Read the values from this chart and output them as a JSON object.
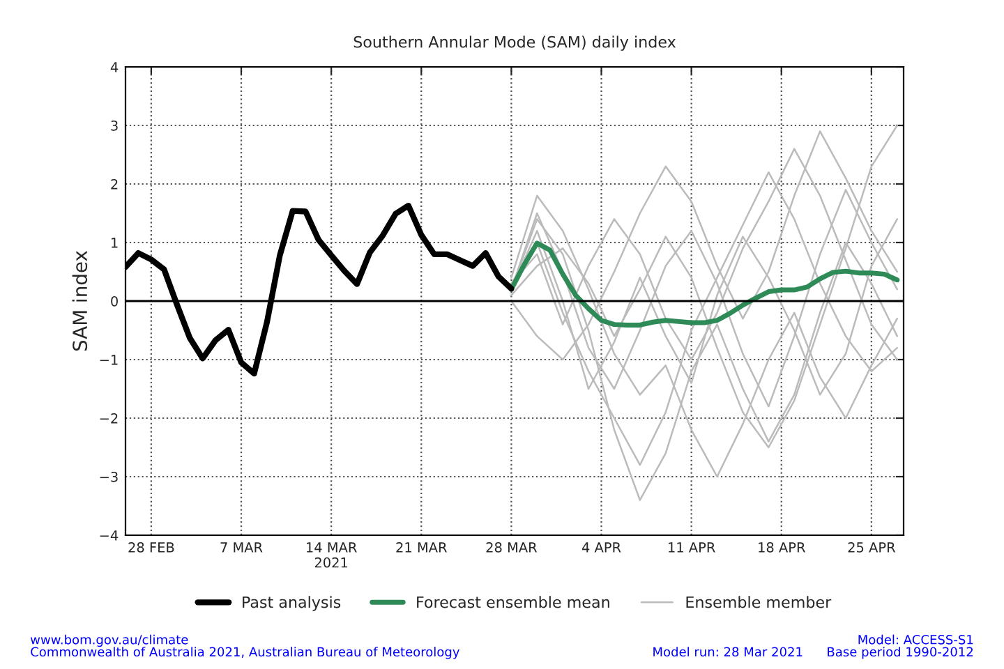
{
  "chart_data": {
    "type": "line",
    "title": "Southern Annular Mode (SAM) daily index",
    "ylabel": "SAM index",
    "xlim": [
      "2021-02-26",
      "2021-04-27T12:00"
    ],
    "xticks": [
      {
        "value": "2021-02-28",
        "label": "28 FEB"
      },
      {
        "value": "2021-03-07",
        "label": "7 MAR"
      },
      {
        "value": "2021-03-14",
        "label": "14 MAR\n2021"
      },
      {
        "value": "2021-03-21",
        "label": "21 MAR"
      },
      {
        "value": "2021-03-28",
        "label": "28 MAR"
      },
      {
        "value": "2021-04-04",
        "label": "4 APR"
      },
      {
        "value": "2021-04-11",
        "label": "11 APR"
      },
      {
        "value": "2021-04-18",
        "label": "18 APR"
      },
      {
        "value": "2021-04-25",
        "label": "25 APR"
      }
    ],
    "ylim": [
      -4,
      4
    ],
    "yticks": [
      {
        "value": -4,
        "label": "−4"
      },
      {
        "value": -3,
        "label": "−3"
      },
      {
        "value": -2,
        "label": "−2"
      },
      {
        "value": -1,
        "label": "−1"
      },
      0,
      1,
      2,
      3,
      4
    ],
    "grid": true,
    "legend": "bottom",
    "line_style": "solid",
    "marker": "none",
    "ref_lines": [
      {
        "axis": "y",
        "value": 0,
        "color": "#000000",
        "line_style": "solid"
      }
    ],
    "series": [
      {
        "name": "Past analysis",
        "color": "#000000",
        "x": [
          "2021-02-26",
          "2021-02-27",
          "2021-02-28",
          "2021-03-01",
          "2021-03-02",
          "2021-03-03",
          "2021-03-04",
          "2021-03-05",
          "2021-03-06",
          "2021-03-07",
          "2021-03-08",
          "2021-03-09",
          "2021-03-10",
          "2021-03-11",
          "2021-03-12",
          "2021-03-13",
          "2021-03-14",
          "2021-03-15",
          "2021-03-16",
          "2021-03-17",
          "2021-03-18",
          "2021-03-19",
          "2021-03-20",
          "2021-03-21",
          "2021-03-22",
          "2021-03-23",
          "2021-03-24",
          "2021-03-25",
          "2021-03-26",
          "2021-03-27",
          "2021-03-28"
        ],
        "values": [
          0.58,
          0.82,
          0.71,
          0.54,
          -0.06,
          -0.63,
          -0.98,
          -0.67,
          -0.49,
          -1.05,
          -1.24,
          -0.36,
          0.78,
          1.54,
          1.53,
          1.05,
          0.78,
          0.52,
          0.29,
          0.83,
          1.12,
          1.49,
          1.63,
          1.13,
          0.8,
          0.8,
          0.7,
          0.6,
          0.82,
          0.42,
          0.21
        ]
      },
      {
        "name": "Forecast ensemble mean",
        "color": "#2e8b57",
        "x": [
          "2021-03-28",
          "2021-03-29",
          "2021-03-30",
          "2021-03-31",
          "2021-04-01",
          "2021-04-02",
          "2021-04-03",
          "2021-04-04",
          "2021-04-05",
          "2021-04-06",
          "2021-04-07",
          "2021-04-08",
          "2021-04-09",
          "2021-04-10",
          "2021-04-11",
          "2021-04-12",
          "2021-04-13",
          "2021-04-14",
          "2021-04-15",
          "2021-04-16",
          "2021-04-17",
          "2021-04-18",
          "2021-04-19",
          "2021-04-20",
          "2021-04-21",
          "2021-04-22",
          "2021-04-23",
          "2021-04-24",
          "2021-04-25",
          "2021-04-26",
          "2021-04-27"
        ],
        "values": [
          0.2,
          0.62,
          0.99,
          0.87,
          0.46,
          0.1,
          -0.13,
          -0.33,
          -0.4,
          -0.41,
          -0.41,
          -0.36,
          -0.33,
          -0.35,
          -0.37,
          -0.37,
          -0.33,
          -0.21,
          -0.07,
          0.05,
          0.16,
          0.19,
          0.19,
          0.24,
          0.38,
          0.49,
          0.51,
          0.48,
          0.48,
          0.46,
          0.36
        ]
      },
      {
        "name": "Ensemble member",
        "color": "#bbbbbb",
        "x": [
          "2021-03-28",
          "2021-03-30",
          "2021-04-01",
          "2021-04-03",
          "2021-04-05",
          "2021-04-07",
          "2021-04-09",
          "2021-04-11",
          "2021-04-13",
          "2021-04-15",
          "2021-04-17",
          "2021-04-19",
          "2021-04-21",
          "2021-04-23",
          "2021-04-25",
          "2021-04-27"
        ],
        "values": [
          0.2,
          1.5,
          0.5,
          -0.8,
          -1.5,
          -0.5,
          0.6,
          1.2,
          0.3,
          -0.9,
          -1.8,
          -0.6,
          0.8,
          1.9,
          1.0,
          0.2
        ]
      },
      {
        "color": "#bbbbbb",
        "x": [
          "2021-03-28",
          "2021-03-30",
          "2021-04-01",
          "2021-04-03",
          "2021-04-05",
          "2021-04-07",
          "2021-04-09",
          "2021-04-11",
          "2021-04-13",
          "2021-04-15",
          "2021-04-17",
          "2021-04-19",
          "2021-04-21",
          "2021-04-23",
          "2021-04-25",
          "2021-04-27"
        ],
        "values": [
          0.3,
          1.0,
          -0.2,
          -1.2,
          -2.0,
          -2.8,
          -1.9,
          -0.5,
          0.4,
          1.3,
          2.2,
          1.4,
          0.3,
          -0.6,
          -1.2,
          -0.8
        ]
      },
      {
        "color": "#bbbbbb",
        "x": [
          "2021-03-28",
          "2021-03-30",
          "2021-04-01",
          "2021-04-03",
          "2021-04-05",
          "2021-04-07",
          "2021-04-09",
          "2021-04-11",
          "2021-04-13",
          "2021-04-15",
          "2021-04-17",
          "2021-04-19",
          "2021-04-21",
          "2021-04-23",
          "2021-04-25",
          "2021-04-27"
        ],
        "values": [
          0.1,
          0.6,
          0.9,
          0.3,
          -0.6,
          0.2,
          1.1,
          0.4,
          -0.8,
          -1.9,
          -2.5,
          -1.7,
          -0.4,
          0.9,
          2.3,
          3.0
        ]
      },
      {
        "color": "#bbbbbb",
        "x": [
          "2021-03-28",
          "2021-03-30",
          "2021-04-01",
          "2021-04-03",
          "2021-04-05",
          "2021-04-07",
          "2021-04-09",
          "2021-04-11",
          "2021-04-13",
          "2021-04-15",
          "2021-04-17",
          "2021-04-19",
          "2021-04-21",
          "2021-04-23",
          "2021-04-25",
          "2021-04-27"
        ],
        "values": [
          0.0,
          -0.6,
          -1.0,
          -0.4,
          0.5,
          1.5,
          2.3,
          1.7,
          0.6,
          -0.3,
          0.5,
          1.8,
          2.9,
          2.1,
          1.2,
          0.5
        ]
      },
      {
        "color": "#bbbbbb",
        "x": [
          "2021-03-28",
          "2021-03-30",
          "2021-04-01",
          "2021-04-03",
          "2021-04-05",
          "2021-04-07",
          "2021-04-09",
          "2021-04-11",
          "2021-04-13",
          "2021-04-15",
          "2021-04-17",
          "2021-04-19",
          "2021-04-21",
          "2021-04-23",
          "2021-04-25",
          "2021-04-27"
        ],
        "values": [
          0.4,
          1.8,
          1.2,
          0.2,
          -0.9,
          -1.6,
          -1.1,
          -2.2,
          -3.0,
          -2.1,
          -1.0,
          -0.2,
          -1.3,
          -2.0,
          -1.1,
          -0.3
        ]
      },
      {
        "color": "#bbbbbb",
        "x": [
          "2021-03-28",
          "2021-03-30",
          "2021-04-01",
          "2021-04-03",
          "2021-04-05",
          "2021-04-07",
          "2021-04-09",
          "2021-04-11",
          "2021-04-13",
          "2021-04-15",
          "2021-04-17",
          "2021-04-19",
          "2021-04-21",
          "2021-04-23",
          "2021-04-25",
          "2021-04-27"
        ],
        "values": [
          0.2,
          1.2,
          0.0,
          -1.5,
          -0.7,
          0.4,
          -0.6,
          -1.4,
          0.1,
          1.1,
          0.4,
          -0.5,
          -1.6,
          -0.9,
          0.6,
          1.4
        ]
      },
      {
        "color": "#bbbbbb",
        "x": [
          "2021-03-28",
          "2021-03-30",
          "2021-04-01",
          "2021-04-03",
          "2021-04-05",
          "2021-04-07",
          "2021-04-09",
          "2021-04-11",
          "2021-04-13",
          "2021-04-15",
          "2021-04-17",
          "2021-04-19",
          "2021-04-21",
          "2021-04-23",
          "2021-04-25",
          "2021-04-27"
        ],
        "values": [
          0.3,
          0.8,
          -0.4,
          0.6,
          1.4,
          0.8,
          -0.3,
          -1.0,
          -0.2,
          0.9,
          1.7,
          2.6,
          1.8,
          0.7,
          -0.4,
          -1.0
        ]
      },
      {
        "color": "#bbbbbb",
        "x": [
          "2021-03-28",
          "2021-03-30",
          "2021-04-01",
          "2021-04-03",
          "2021-04-05",
          "2021-04-07",
          "2021-04-09",
          "2021-04-11",
          "2021-04-13",
          "2021-04-15",
          "2021-04-17",
          "2021-04-19",
          "2021-04-21",
          "2021-04-23",
          "2021-04-25",
          "2021-04-27"
        ],
        "values": [
          0.2,
          1.4,
          0.8,
          -0.5,
          -2.2,
          -3.4,
          -2.6,
          -1.2,
          -0.4,
          -1.5,
          -2.4,
          -1.6,
          -0.2,
          1.0,
          0.3,
          -0.6
        ]
      }
    ],
    "annotations": [
      "www.bom.gov.au/climate\nCommonwealth of Australia 2021, Australian Bureau of Meteorology",
      "Model run: 28 Mar 2021",
      "Model: ACCESS-S1\nBase period 1990-2012"
    ]
  }
}
